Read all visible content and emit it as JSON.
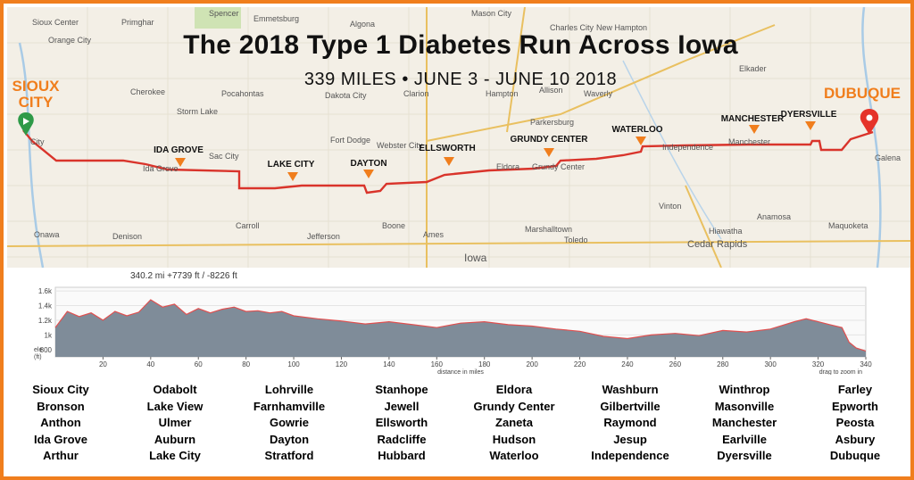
{
  "header": {
    "title": "The 2018 Type 1 Diabetes Run Across Iowa",
    "subtitle": "339 MILES • JUNE 3 - JUNE 10 2018"
  },
  "endpoints": {
    "start": "SIOUX CITY",
    "end": "DUBUQUE"
  },
  "stops": [
    "IDA GROVE",
    "LAKE CITY",
    "DAYTON",
    "ELLSWORTH",
    "GRUNDY CENTER",
    "WATERLOO",
    "MANCHESTER",
    "DYERSVILLE"
  ],
  "map_towns": [
    "Sioux Center",
    "Primghar",
    "Spencer",
    "Emmetsburg",
    "Algona",
    "Mason City",
    "Charles City",
    "New Hampton",
    "Orange City",
    "Cherokee",
    "Pocahontas",
    "Dakota City",
    "Clarion",
    "Hampton",
    "Allison",
    "Waverly",
    "Elkader",
    "Storm Lake",
    "Fort Dodge",
    "Webster City",
    "Parkersburg",
    "Ida Grove",
    "Sac City",
    "Eldora",
    "Grundy Center",
    "Independence",
    "Manchester",
    "Galena",
    "Carroll",
    "Jefferson",
    "Boone",
    "Ames",
    "Marshalltown",
    "Toledo",
    "Vinton",
    "Hiawatha",
    "Cedar Rapids",
    "Anamosa",
    "Maquoketa",
    "Onawa",
    "Denison",
    "Iowa",
    "City"
  ],
  "colors": {
    "accent": "#f07e1d",
    "route": "#d9342b",
    "start_pin": "#2e9a48",
    "end_pin": "#e5332a",
    "profile_fill": "#7f8c99",
    "profile_line": "#e05050"
  },
  "profile": {
    "stats": "340.2 mi +7739 ft / -8226 ft",
    "y_label_1": "ele",
    "y_label_2": "(ft)",
    "y_ticks": [
      "1.6k",
      "1.4k",
      "1.2k",
      "1k",
      "800"
    ],
    "x_ticks": [
      "20",
      "40",
      "60",
      "80",
      "100",
      "120",
      "140",
      "160",
      "180",
      "200",
      "220",
      "240",
      "260",
      "280",
      "300",
      "320",
      "340"
    ],
    "x_label": "distance in miles",
    "zoom_hint": "drag to zoom in"
  },
  "chart_data": {
    "type": "area",
    "title": "",
    "xlabel": "distance in miles",
    "ylabel": "ele (ft)",
    "xlim": [
      0,
      340
    ],
    "ylim": [
      700,
      1650
    ],
    "x": [
      0,
      5,
      10,
      15,
      20,
      25,
      30,
      35,
      40,
      45,
      50,
      55,
      60,
      65,
      70,
      75,
      80,
      85,
      90,
      95,
      100,
      110,
      120,
      130,
      140,
      150,
      160,
      170,
      180,
      190,
      200,
      210,
      220,
      230,
      240,
      250,
      260,
      270,
      280,
      290,
      300,
      310,
      315,
      320,
      325,
      330,
      333,
      336,
      340
    ],
    "y": [
      1100,
      1320,
      1250,
      1300,
      1200,
      1320,
      1260,
      1310,
      1480,
      1380,
      1420,
      1280,
      1360,
      1300,
      1350,
      1380,
      1320,
      1330,
      1300,
      1320,
      1260,
      1220,
      1190,
      1150,
      1180,
      1140,
      1100,
      1160,
      1180,
      1140,
      1120,
      1080,
      1050,
      980,
      950,
      1000,
      1020,
      990,
      1060,
      1040,
      1080,
      1180,
      1220,
      1180,
      1140,
      1100,
      900,
      820,
      780
    ]
  },
  "town_columns": [
    [
      "Sioux City",
      "Bronson",
      "Anthon",
      "Ida Grove",
      "Arthur"
    ],
    [
      "Odabolt",
      "Lake View",
      "Ulmer",
      "Auburn",
      "Lake City"
    ],
    [
      "Lohrville",
      "Farnhamville",
      "Gowrie",
      "Dayton",
      "Stratford"
    ],
    [
      "Stanhope",
      "Jewell",
      "Ellsworth",
      "Radcliffe",
      "Hubbard"
    ],
    [
      "Eldora",
      "Grundy Center",
      "Zaneta",
      "Hudson",
      "Waterloo"
    ],
    [
      "Washburn",
      "Gilbertville",
      "Raymond",
      "Jesup",
      "Independence"
    ],
    [
      "Winthrop",
      "Masonville",
      "Manchester",
      "Earlville",
      "Dyersville"
    ],
    [
      "Farley",
      "Epworth",
      "Peosta",
      "Asbury",
      "Dubuque"
    ]
  ]
}
